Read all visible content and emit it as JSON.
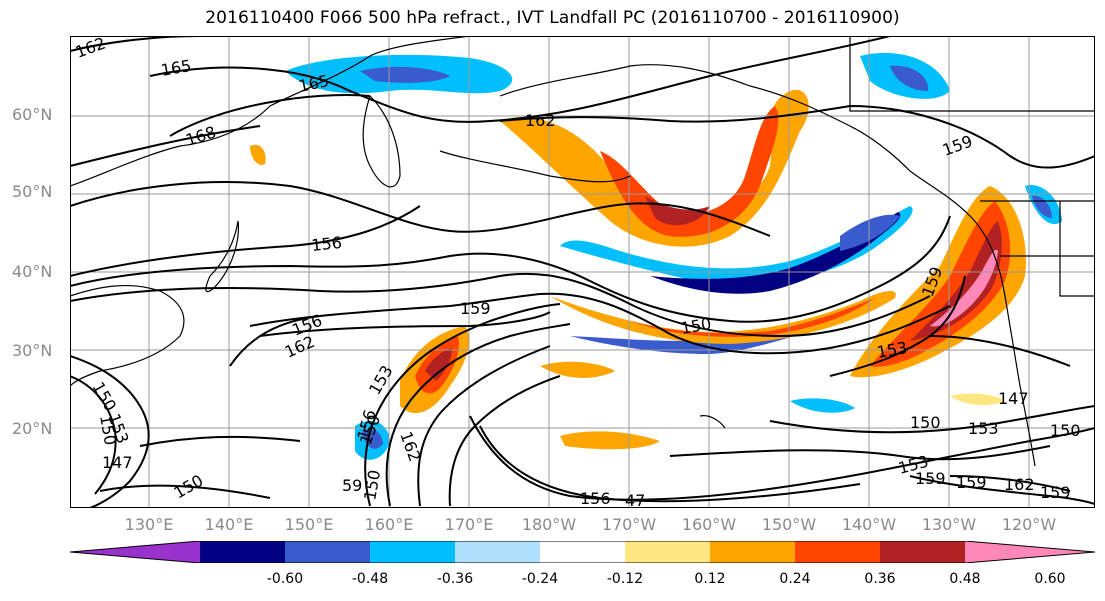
{
  "title": "2016110400 F066 500 hPa refract., IVT Landfall PC (2016110700 - 2016110900)",
  "lat_labels": [
    "60°N",
    "50°N",
    "40°N",
    "30°N",
    "20°N"
  ],
  "lon_labels": [
    "130°E",
    "140°E",
    "150°E",
    "160°E",
    "170°E",
    "180°W",
    "170°W",
    "160°W",
    "150°W",
    "140°W",
    "130°W",
    "120°W"
  ],
  "contour_labels": [
    "162",
    "165",
    "165",
    "168",
    "162",
    "159",
    "156",
    "156",
    "162",
    "159",
    "150",
    "153",
    "159",
    "147",
    "150",
    "153",
    "150",
    "150",
    "153",
    "150",
    "147",
    "150",
    "153",
    "159",
    "159",
    "162",
    "159",
    "156",
    "47",
    "59",
    "150",
    "153",
    "150",
    "156",
    "162"
  ],
  "colorbar": {
    "ticks": [
      "-0.60",
      "-0.48",
      "-0.36",
      "-0.24",
      "-0.12",
      "0.12",
      "0.24",
      "0.36",
      "0.48",
      "0.60"
    ],
    "colors": [
      "#9932cc",
      "#000080",
      "#3a5bcd",
      "#00bfff",
      "#b0e0ff",
      "#ffffff",
      "#ffe680",
      "#ffa500",
      "#ff4500",
      "#b22222",
      "#ff88b8"
    ]
  },
  "colors": {
    "contour": "#000000",
    "coastline": "#000000",
    "gridline": "#9a9a9a",
    "axis_label": "#8a8a8a"
  }
}
